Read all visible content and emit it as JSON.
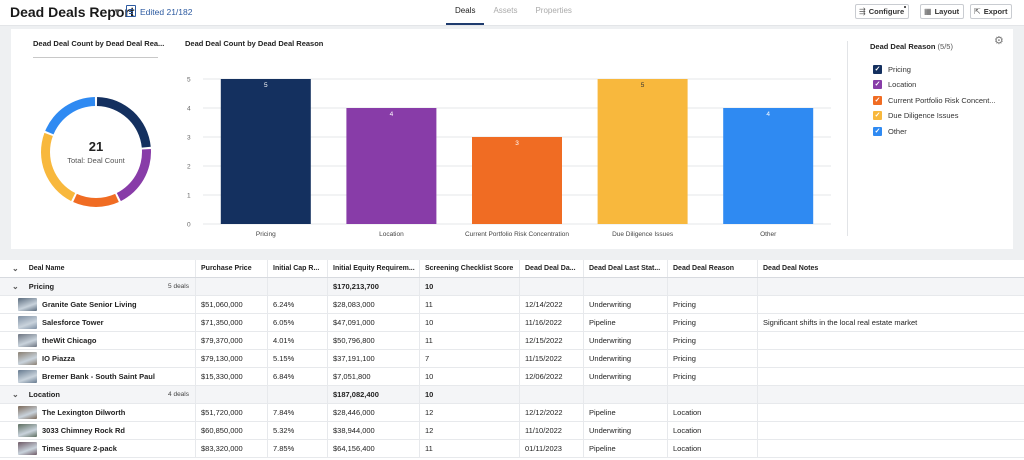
{
  "header": {
    "title": "Dead Deals Report",
    "edited": "Edited 21/182",
    "tabs": [
      {
        "label": "Deals",
        "active": true
      },
      {
        "label": "Assets",
        "active": false
      },
      {
        "label": "Properties",
        "active": false
      }
    ],
    "buttons": {
      "configure": "Configure",
      "layout": "Layout",
      "export": "Export"
    }
  },
  "donut_panel": {
    "title": "Dead Deal Count by Dead Deal Rea...",
    "total": "21",
    "total_label": "Total: Deal Count"
  },
  "bar_panel": {
    "title": "Dead Deal Count by Dead Deal Reason"
  },
  "legend": {
    "title": "Dead Deal Reason",
    "count": "(5/5)",
    "items": [
      {
        "label": "Pricing",
        "color": "#14305f"
      },
      {
        "label": "Location",
        "color": "#883ca8"
      },
      {
        "label": "Current Portfolio Risk Concent...",
        "color": "#f06c23"
      },
      {
        "label": "Due Diligence Issues",
        "color": "#f8b83d"
      },
      {
        "label": "Other",
        "color": "#2f8af2"
      }
    ]
  },
  "chart_data": [
    {
      "type": "pie",
      "title": "Dead Deal Count by Dead Deal Rea...",
      "categories": [
        "Pricing",
        "Location",
        "Current Portfolio Risk Concentration",
        "Due Diligence Issues",
        "Other"
      ],
      "values": [
        5,
        4,
        3,
        5,
        4
      ],
      "colors": [
        "#14305f",
        "#883ca8",
        "#f06c23",
        "#f8b83d",
        "#2f8af2"
      ],
      "center_value": "21",
      "center_label": "Total: Deal Count"
    },
    {
      "type": "bar",
      "title": "Dead Deal Count by Dead Deal Reason",
      "categories": [
        "Pricing",
        "Location",
        "Current Portfolio Risk Concentration",
        "Due Diligence Issues",
        "Other"
      ],
      "values": [
        5,
        4,
        3,
        5,
        4
      ],
      "colors": [
        "#14305f",
        "#883ca8",
        "#f06c23",
        "#f8b83d",
        "#2f8af2"
      ],
      "yticks": [
        "0",
        "1",
        "2",
        "3",
        "4",
        "5"
      ],
      "ylim": [
        0,
        5
      ],
      "grid": true
    }
  ],
  "table": {
    "columns": [
      "Deal Name",
      "Purchase Price",
      "Initial Cap R...",
      "Initial Equity Requirem...",
      "Screening Checklist Score",
      "Dead Deal Da...",
      "Dead Deal Last Stat...",
      "Dead Deal Reason",
      "Dead Deal Notes"
    ],
    "groups": [
      {
        "name": "Pricing",
        "count": "5 deals",
        "equity": "$170,213,700",
        "score": "10",
        "rows": [
          {
            "name": "Granite Gate Senior Living",
            "price": "$51,060,000",
            "cap": "6.24%",
            "equity": "$28,083,000",
            "score": "11",
            "date": "12/14/2022",
            "status": "Underwriting",
            "reason": "Pricing",
            "notes": "",
            "thumb": "#5a6b7d"
          },
          {
            "name": "Salesforce Tower",
            "price": "$71,350,000",
            "cap": "6.05%",
            "equity": "$47,091,000",
            "score": "10",
            "date": "11/16/2022",
            "status": "Pipeline",
            "reason": "Pricing",
            "notes": "Significant shifts in the local real estate market",
            "thumb": "#7e8fa3"
          },
          {
            "name": "theWit Chicago",
            "price": "$79,370,000",
            "cap": "4.01%",
            "equity": "$50,796,800",
            "score": "11",
            "date": "12/15/2022",
            "status": "Underwriting",
            "reason": "Pricing",
            "notes": "",
            "thumb": "#6c7480"
          },
          {
            "name": "IO Piazza",
            "price": "$79,130,000",
            "cap": "5.15%",
            "equity": "$37,191,100",
            "score": "7",
            "date": "11/15/2022",
            "status": "Underwriting",
            "reason": "Pricing",
            "notes": "",
            "thumb": "#8a7f72"
          },
          {
            "name": "Bremer Bank - South Saint Paul",
            "price": "$15,330,000",
            "cap": "6.84%",
            "equity": "$7,051,800",
            "score": "10",
            "date": "12/06/2022",
            "status": "Underwriting",
            "reason": "Pricing",
            "notes": "",
            "thumb": "#667a8f"
          }
        ]
      },
      {
        "name": "Location",
        "count": "4 deals",
        "equity": "$187,082,400",
        "score": "10",
        "rows": [
          {
            "name": "The Lexington Dilworth",
            "price": "$51,720,000",
            "cap": "7.84%",
            "equity": "$28,446,000",
            "score": "12",
            "date": "12/12/2022",
            "status": "Pipeline",
            "reason": "Location",
            "notes": "",
            "thumb": "#7c6a5a"
          },
          {
            "name": "3033 Chimney Rock Rd",
            "price": "$60,850,000",
            "cap": "5.32%",
            "equity": "$38,944,000",
            "score": "12",
            "date": "11/10/2022",
            "status": "Underwriting",
            "reason": "Location",
            "notes": "",
            "thumb": "#5d6e60"
          },
          {
            "name": "Times Square 2-pack",
            "price": "$83,320,000",
            "cap": "7.85%",
            "equity": "$64,156,400",
            "score": "11",
            "date": "01/11/2023",
            "status": "Pipeline",
            "reason": "Location",
            "notes": "",
            "thumb": "#6e5a66"
          }
        ]
      }
    ]
  }
}
